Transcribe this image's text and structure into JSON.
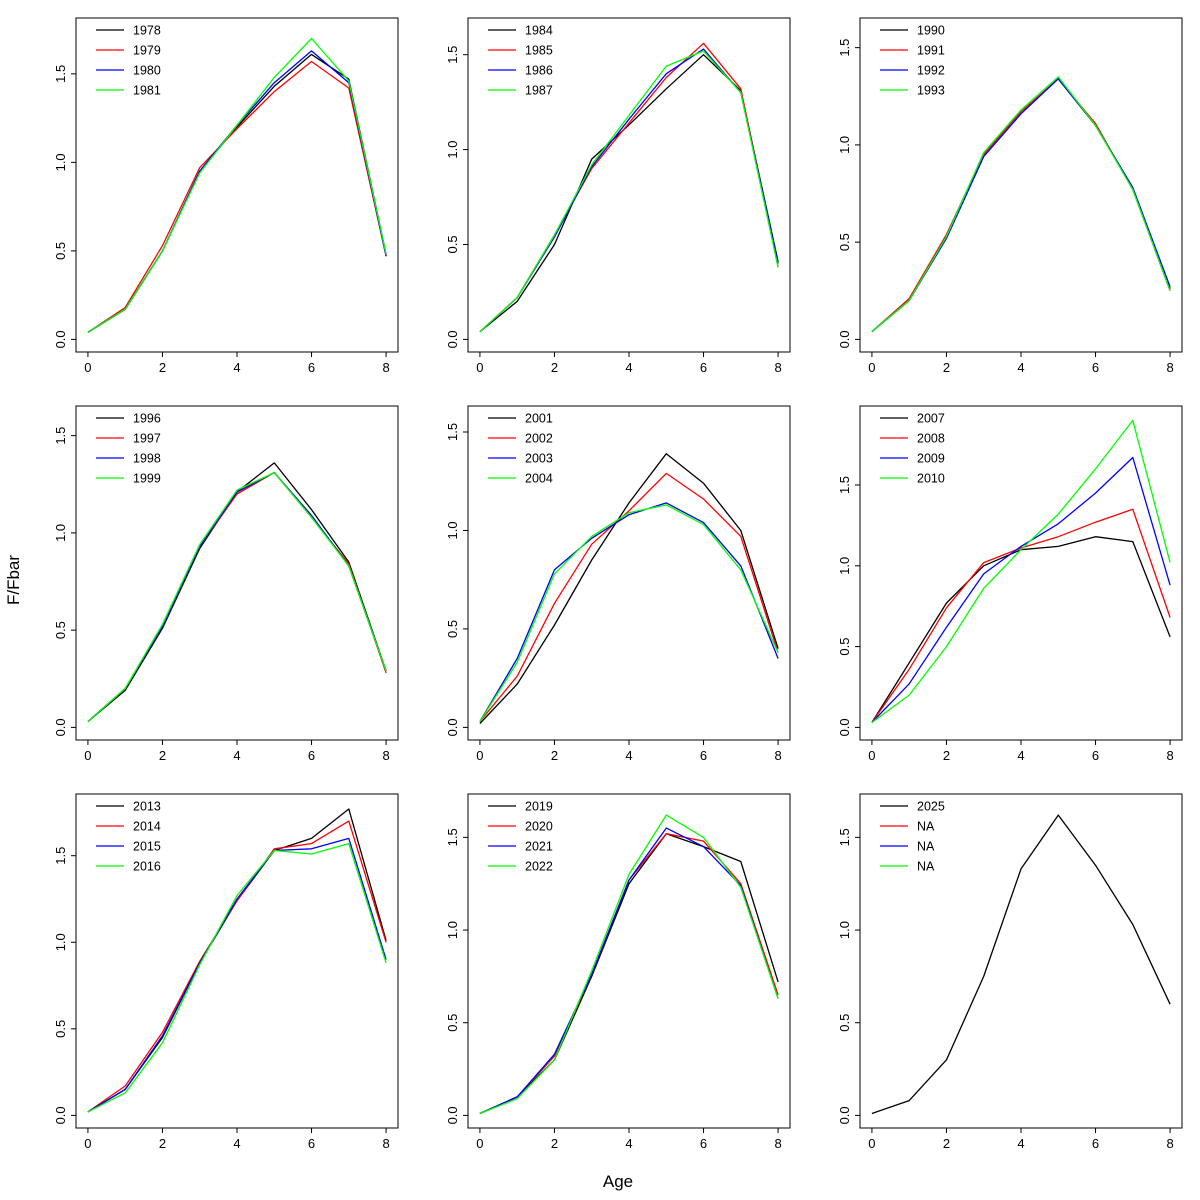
{
  "figure": {
    "xlabel": "Age",
    "ylabel": "F/Fbar",
    "colors": [
      "#000000",
      "#FF0000",
      "#0000FF",
      "#00FF00"
    ],
    "x_ticks": [
      0,
      2,
      4,
      6,
      8
    ],
    "y_ticks": [
      0.0,
      0.5,
      1.0,
      1.5
    ]
  },
  "chart_data": [
    {
      "type": "line",
      "x": [
        0,
        1,
        2,
        3,
        4,
        5,
        6,
        7,
        8
      ],
      "ylim": [
        0,
        1.78
      ],
      "series": [
        {
          "name": "1978",
          "values": [
            0.04,
            0.17,
            0.5,
            0.95,
            1.2,
            1.43,
            1.61,
            1.47,
            0.48
          ]
        },
        {
          "name": "1979",
          "values": [
            0.04,
            0.18,
            0.53,
            0.97,
            1.19,
            1.4,
            1.57,
            1.42,
            0.47
          ]
        },
        {
          "name": "1980",
          "values": [
            0.04,
            0.17,
            0.5,
            0.95,
            1.21,
            1.45,
            1.63,
            1.45,
            0.47
          ]
        },
        {
          "name": "1981",
          "values": [
            0.04,
            0.17,
            0.5,
            0.94,
            1.21,
            1.48,
            1.7,
            1.46,
            0.48
          ]
        }
      ]
    },
    {
      "type": "line",
      "x": [
        0,
        1,
        2,
        3,
        4,
        5,
        6,
        7,
        8
      ],
      "ylim": [
        0,
        1.66
      ],
      "series": [
        {
          "name": "1984",
          "values": [
            0.04,
            0.2,
            0.5,
            0.95,
            1.13,
            1.32,
            1.5,
            1.31,
            0.41
          ]
        },
        {
          "name": "1985",
          "values": [
            0.04,
            0.22,
            0.55,
            0.9,
            1.14,
            1.38,
            1.56,
            1.32,
            0.38
          ]
        },
        {
          "name": "1986",
          "values": [
            0.04,
            0.22,
            0.54,
            0.91,
            1.16,
            1.4,
            1.53,
            1.3,
            0.4
          ]
        },
        {
          "name": "1987",
          "values": [
            0.04,
            0.22,
            0.55,
            0.92,
            1.18,
            1.44,
            1.52,
            1.3,
            0.38
          ]
        }
      ]
    },
    {
      "type": "line",
      "x": [
        0,
        1,
        2,
        3,
        4,
        5,
        6,
        7,
        8
      ],
      "ylim": [
        0,
        1.62
      ],
      "series": [
        {
          "name": "1990",
          "values": [
            0.04,
            0.2,
            0.53,
            0.95,
            1.17,
            1.34,
            1.1,
            0.78,
            0.26
          ]
        },
        {
          "name": "1991",
          "values": [
            0.04,
            0.21,
            0.54,
            0.95,
            1.17,
            1.34,
            1.11,
            0.77,
            0.25
          ]
        },
        {
          "name": "1992",
          "values": [
            0.04,
            0.2,
            0.52,
            0.94,
            1.16,
            1.34,
            1.1,
            0.78,
            0.27
          ]
        },
        {
          "name": "1993",
          "values": [
            0.04,
            0.2,
            0.53,
            0.96,
            1.18,
            1.35,
            1.1,
            0.77,
            0.25
          ]
        }
      ]
    },
    {
      "type": "line",
      "x": [
        0,
        1,
        2,
        3,
        4,
        5,
        6,
        7,
        8
      ],
      "ylim": [
        0,
        1.62
      ],
      "series": [
        {
          "name": "1996",
          "values": [
            0.03,
            0.19,
            0.51,
            0.92,
            1.21,
            1.36,
            1.12,
            0.85,
            0.29
          ]
        },
        {
          "name": "1997",
          "values": [
            0.03,
            0.2,
            0.52,
            0.93,
            1.2,
            1.31,
            1.08,
            0.84,
            0.28
          ]
        },
        {
          "name": "1998",
          "values": [
            0.03,
            0.2,
            0.52,
            0.93,
            1.21,
            1.31,
            1.09,
            0.83,
            0.29
          ]
        },
        {
          "name": "1999",
          "values": [
            0.03,
            0.2,
            0.53,
            0.94,
            1.22,
            1.31,
            1.08,
            0.83,
            0.29
          ]
        }
      ]
    },
    {
      "type": "line",
      "x": [
        0,
        1,
        2,
        3,
        4,
        5,
        6,
        7,
        8
      ],
      "ylim": [
        0,
        1.6
      ],
      "series": [
        {
          "name": "2001",
          "values": [
            0.02,
            0.22,
            0.52,
            0.85,
            1.14,
            1.39,
            1.24,
            1.0,
            0.4
          ]
        },
        {
          "name": "2002",
          "values": [
            0.03,
            0.26,
            0.63,
            0.93,
            1.1,
            1.29,
            1.16,
            0.97,
            0.38
          ]
        },
        {
          "name": "2003",
          "values": [
            0.03,
            0.35,
            0.8,
            0.96,
            1.08,
            1.14,
            1.04,
            0.82,
            0.35
          ]
        },
        {
          "name": "2004",
          "values": [
            0.03,
            0.33,
            0.78,
            0.97,
            1.09,
            1.13,
            1.03,
            0.8,
            0.38
          ]
        }
      ]
    },
    {
      "type": "line",
      "x": [
        0,
        1,
        2,
        3,
        4,
        5,
        6,
        7,
        8
      ],
      "ylim": [
        0,
        1.95
      ],
      "series": [
        {
          "name": "2007",
          "values": [
            0.03,
            0.4,
            0.77,
            1.0,
            1.1,
            1.12,
            1.18,
            1.15,
            0.56
          ]
        },
        {
          "name": "2008",
          "values": [
            0.03,
            0.36,
            0.74,
            1.02,
            1.11,
            1.18,
            1.27,
            1.35,
            0.68
          ]
        },
        {
          "name": "2009",
          "values": [
            0.03,
            0.27,
            0.62,
            0.95,
            1.12,
            1.26,
            1.45,
            1.67,
            0.88
          ]
        },
        {
          "name": "2010",
          "values": [
            0.03,
            0.2,
            0.5,
            0.86,
            1.1,
            1.32,
            1.6,
            1.9,
            1.02
          ]
        }
      ]
    },
    {
      "type": "line",
      "x": [
        0,
        1,
        2,
        3,
        4,
        5,
        6,
        7,
        8
      ],
      "ylim": [
        0,
        1.82
      ],
      "series": [
        {
          "name": "2013",
          "values": [
            0.02,
            0.15,
            0.45,
            0.88,
            1.24,
            1.53,
            1.6,
            1.77,
            1.01
          ]
        },
        {
          "name": "2014",
          "values": [
            0.02,
            0.17,
            0.48,
            0.89,
            1.24,
            1.54,
            1.57,
            1.7,
            1.0
          ]
        },
        {
          "name": "2015",
          "values": [
            0.02,
            0.15,
            0.46,
            0.88,
            1.25,
            1.53,
            1.54,
            1.6,
            0.9
          ]
        },
        {
          "name": "2016",
          "values": [
            0.02,
            0.13,
            0.42,
            0.87,
            1.27,
            1.53,
            1.51,
            1.57,
            0.88
          ]
        }
      ]
    },
    {
      "type": "line",
      "x": [
        0,
        1,
        2,
        3,
        4,
        5,
        6,
        7,
        8
      ],
      "ylim": [
        0,
        1.7
      ],
      "series": [
        {
          "name": "2019",
          "values": [
            0.01,
            0.1,
            0.3,
            0.75,
            1.25,
            1.52,
            1.45,
            1.37,
            0.72
          ]
        },
        {
          "name": "2020",
          "values": [
            0.01,
            0.1,
            0.32,
            0.76,
            1.27,
            1.52,
            1.48,
            1.25,
            0.65
          ]
        },
        {
          "name": "2021",
          "values": [
            0.01,
            0.1,
            0.33,
            0.76,
            1.27,
            1.55,
            1.45,
            1.24,
            0.63
          ]
        },
        {
          "name": "2022",
          "values": [
            0.01,
            0.09,
            0.3,
            0.78,
            1.3,
            1.62,
            1.5,
            1.23,
            0.63
          ]
        }
      ]
    },
    {
      "type": "line",
      "x": [
        0,
        1,
        2,
        3,
        4,
        5,
        6,
        7,
        8
      ],
      "ylim": [
        0,
        1.7
      ],
      "series": [
        {
          "name": "2025",
          "values": [
            0.01,
            0.08,
            0.3,
            0.75,
            1.33,
            1.62,
            1.35,
            1.03,
            0.6
          ]
        },
        {
          "name": "NA",
          "values": []
        },
        {
          "name": "NA",
          "values": []
        },
        {
          "name": "NA",
          "values": []
        }
      ]
    }
  ]
}
